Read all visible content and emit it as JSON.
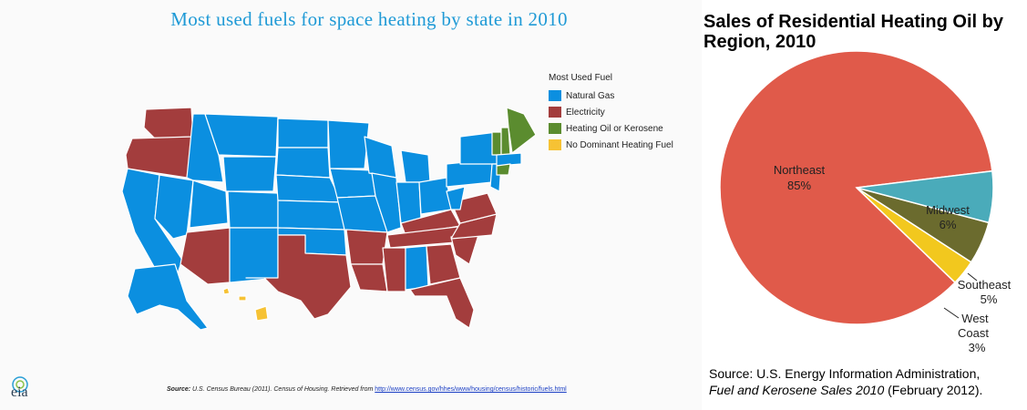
{
  "map": {
    "title": "Most used fuels for space heating by state in 2010",
    "legend_title": "Most Used Fuel",
    "legend": [
      {
        "label": "Natural Gas",
        "color": "#0b8fe0"
      },
      {
        "label": "Electricity",
        "color": "#a33d3d"
      },
      {
        "label": "Heating Oil or Kerosene",
        "color": "#5b8c2f"
      },
      {
        "label": "No Dominant Heating Fuel",
        "color": "#f6c234"
      }
    ],
    "source_label": "Source:",
    "source_text": " U.S. Census Bureau (2011).  Census of Housing. Retrieved from ",
    "source_link": "http://www.census.gov/hhes/www/housing/census/historic/fuels.html",
    "logo_text": "eia"
  },
  "chart_data": {
    "type": "pie",
    "title": "Sales of Residential Heating Oil by Region, 2010",
    "slices": [
      {
        "label": "Northeast",
        "value": 85,
        "value_label": "85%",
        "color": "#e05a4a"
      },
      {
        "label": "Midwest",
        "value": 6,
        "value_label": "6%",
        "color": "#4aabba"
      },
      {
        "label": "Southeast",
        "value": 5,
        "value_label": "5%",
        "color": "#6b6b2e"
      },
      {
        "label": "West Coast",
        "value": 3,
        "value_label": "3%",
        "color": "#f2c81e"
      }
    ],
    "source_line1": "Source: U.S. Energy Information Administration,",
    "source_italic": "Fuel and Kerosene Sales 2010",
    "source_rest": " (February 2012)."
  }
}
